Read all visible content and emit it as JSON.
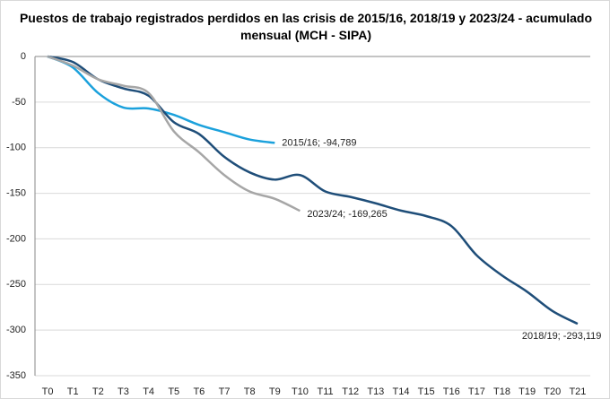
{
  "chart_data": {
    "type": "line",
    "title": "Puestos de trabajo registrados perdidos en las crisis de 2015/16, 2018/19 y 2023/24 - acumulado mensual (MCH - SIPA)",
    "categories": [
      "T0",
      "T1",
      "T2",
      "T3",
      "T4",
      "T5",
      "T6",
      "T7",
      "T8",
      "T9",
      "T10",
      "T11",
      "T12",
      "T13",
      "T14",
      "T15",
      "T16",
      "T17",
      "T18",
      "T19",
      "T20",
      "T21"
    ],
    "series": [
      {
        "name": "2015/16",
        "color": "#1ba1dc",
        "values": [
          0,
          -12,
          -40,
          -56,
          -57,
          -64,
          -75,
          -83,
          -91,
          -94.789,
          null,
          null,
          null,
          null,
          null,
          null,
          null,
          null,
          null,
          null,
          null,
          null
        ],
        "value_labels": [
          null,
          null,
          null,
          null,
          null,
          null,
          null,
          null,
          null,
          "2015/16; -94,789",
          null,
          null,
          null,
          null,
          null,
          null,
          null,
          null,
          null,
          null,
          null,
          null
        ]
      },
      {
        "name": "2018/19",
        "color": "#1f4e79",
        "values": [
          0,
          -6,
          -25,
          -35,
          -43,
          -72,
          -85,
          -110,
          -127,
          -135,
          -130,
          -148,
          -154,
          -161,
          -169,
          -175,
          -186,
          -218,
          -240,
          -258,
          -279,
          -293.119
        ],
        "value_labels": [
          null,
          null,
          null,
          null,
          null,
          null,
          null,
          null,
          null,
          null,
          null,
          null,
          null,
          null,
          null,
          null,
          null,
          null,
          null,
          null,
          null,
          "2018/19; -293,119"
        ]
      },
      {
        "name": "2023/24",
        "color": "#a6a6a6",
        "values": [
          0,
          -10,
          -25,
          -32,
          -40,
          -82,
          -105,
          -130,
          -148,
          -156,
          -169.265,
          null,
          null,
          null,
          null,
          null,
          null,
          null,
          null,
          null,
          null,
          null
        ],
        "value_labels": [
          null,
          null,
          null,
          null,
          null,
          null,
          null,
          null,
          null,
          null,
          "2023/24; -169,265",
          null,
          null,
          null,
          null,
          null,
          null,
          null,
          null,
          null,
          null,
          null
        ]
      }
    ],
    "ylim": [
      -350,
      0
    ],
    "yticks": [
      0,
      -50,
      -100,
      -150,
      -200,
      -250,
      -300,
      -350
    ],
    "grid": true
  }
}
